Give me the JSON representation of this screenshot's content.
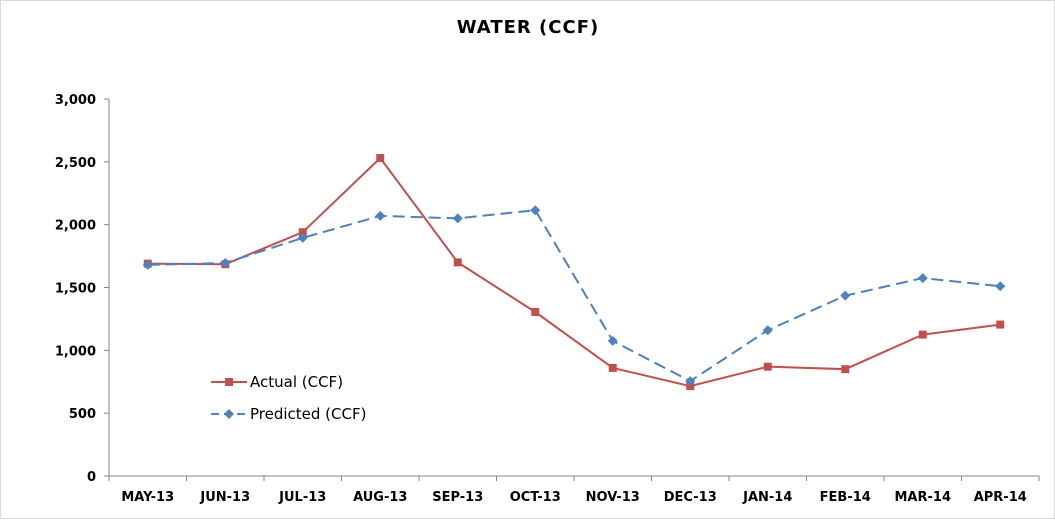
{
  "chart_data": {
    "type": "line",
    "title": "WATER (CCF)",
    "xlabel": "",
    "ylabel": "",
    "categories": [
      "MAY-13",
      "JUN-13",
      "JUL-13",
      "AUG-13",
      "SEP-13",
      "OCT-13",
      "NOV-13",
      "DEC-13",
      "JAN-14",
      "FEB-14",
      "MAR-14",
      "APR-14"
    ],
    "ylim": [
      0,
      3000
    ],
    "yticks": [
      "0",
      "500",
      "1,000",
      "1,500",
      "2,000",
      "2,500",
      "3,000"
    ],
    "ytick_values": [
      0,
      500,
      1000,
      1500,
      2000,
      2500,
      3000
    ],
    "grid": false,
    "legend_position": "lower-left",
    "series": [
      {
        "name": "Actual (CCF)",
        "color": "#C0504D",
        "marker": "square",
        "dash": "solid",
        "values": [
          1690,
          1685,
          1940,
          2530,
          1700,
          1305,
          860,
          715,
          870,
          850,
          1125,
          1205
        ]
      },
      {
        "name": "Predicted (CCF)",
        "color": "#4F81BD",
        "marker": "diamond",
        "dash": "dashed",
        "values": [
          1680,
          1695,
          1895,
          2070,
          2050,
          2115,
          1075,
          755,
          1160,
          1435,
          1575,
          1510
        ]
      }
    ]
  }
}
